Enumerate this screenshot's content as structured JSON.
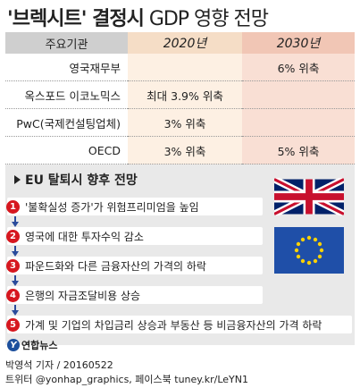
{
  "title": {
    "main": "'브렉시트' 결정시",
    "sub": "GDP 영향 전망"
  },
  "table": {
    "header": [
      "주요기관",
      "2020년",
      "2030년"
    ],
    "rows": [
      {
        "label": "영국재무부",
        "v2020": "",
        "v2030": "6% 위축"
      },
      {
        "label": "옥스포드 이코노믹스",
        "v2020": "최대 3.9% 위축",
        "v2030": ""
      },
      {
        "label": "PwC(국제컨설팅업체)",
        "v2020": "3% 위축",
        "v2030": ""
      },
      {
        "label": "OECD",
        "v2020": "3% 위축",
        "v2030": "5% 위축"
      }
    ]
  },
  "section": {
    "title": "EU 탈퇴시 향후 전망",
    "steps": [
      {
        "num": "1",
        "text": "'불확실성 증가'가 위험프리미엄을 높임"
      },
      {
        "num": "2",
        "text": "영국에 대한 투자수익 감소"
      },
      {
        "num": "3",
        "text": "파운드화와 다른 금융자산의 가격의 하락"
      },
      {
        "num": "4",
        "text": "은행의 자금조달비용 상승"
      },
      {
        "num": "5",
        "text": "가계 및 기업의 차입금리 상승과 부동산 등 비금융자산의 가격 하락"
      }
    ]
  },
  "logo": {
    "text": "연합뉴스",
    "mark": "Y"
  },
  "credits": {
    "line1": "박영석 기자 / 20160522",
    "line2": "트위터 @yonhap_graphics, 페이스북 tuney.kr/LeYN1"
  },
  "colors": {
    "header_gray": "#cfcfcf",
    "col2020": "#fdf0e3",
    "col2030": "#f9dfd4",
    "step_number_red": "#d6171f",
    "arrow_blue": "#2a4b9b"
  },
  "icons": [
    "uk-flag-icon",
    "eu-flag-icon"
  ]
}
